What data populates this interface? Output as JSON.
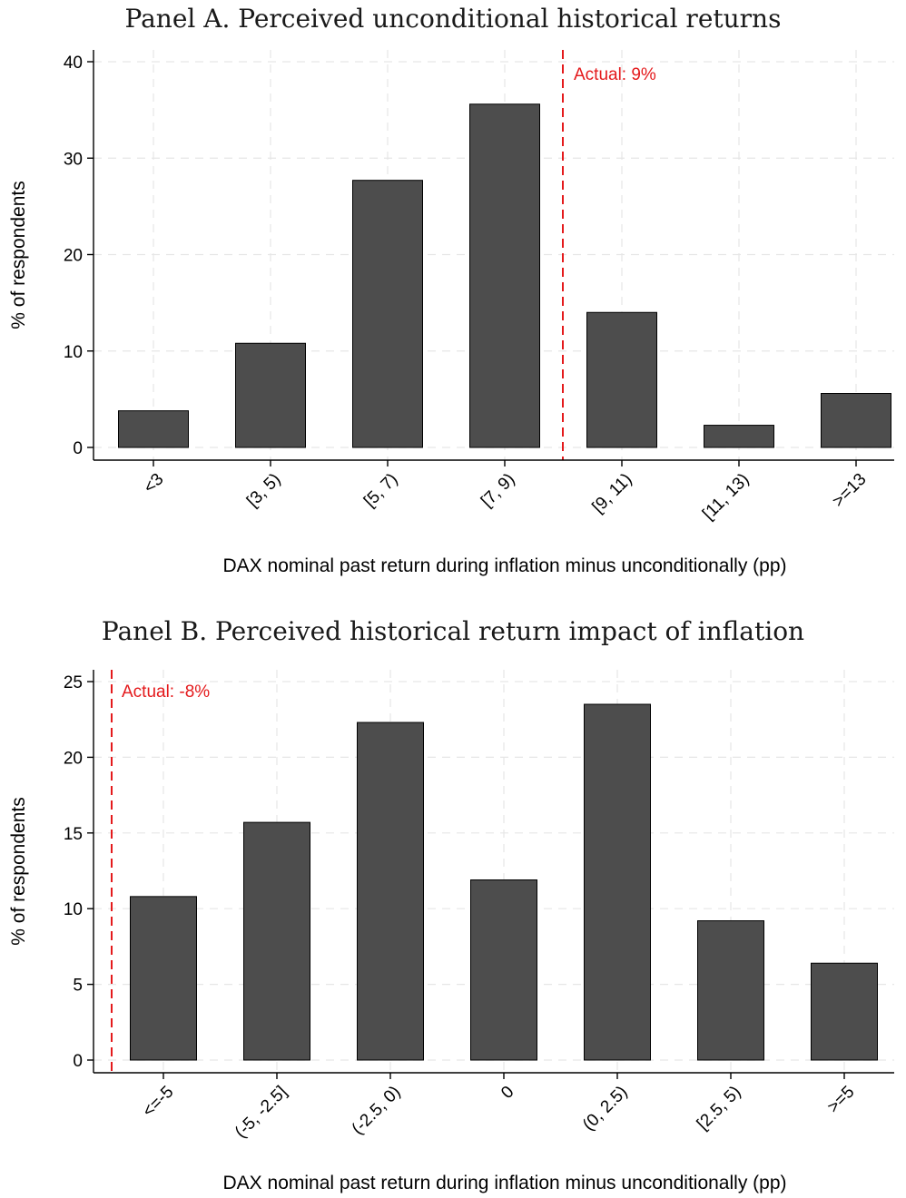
{
  "colors": {
    "bar": "#4d4d4d",
    "reference": "#e41a1c",
    "grid": "#e6e6e6"
  },
  "chart_data": [
    {
      "type": "bar",
      "title": "Panel A. Perceived unconditional historical returns",
      "xlabel": "DAX nominal past return during inflation minus unconditionally (pp)",
      "ylabel": "% of respondents",
      "categories": [
        "<3",
        "[3, 5)",
        "[5, 7)",
        "[7, 9)",
        "[9, 11)",
        "[11, 13)",
        ">=13"
      ],
      "values": [
        3.8,
        10.8,
        27.7,
        35.6,
        14.0,
        2.3,
        5.6
      ],
      "ylim": [
        0,
        40
      ],
      "yticks": [
        0,
        10,
        20,
        30,
        40
      ],
      "grid": true,
      "reference_line": {
        "position": "between [7, 9) and [9, 11)",
        "label": "Actual: 9%"
      }
    },
    {
      "type": "bar",
      "title": "Panel B. Perceived historical return impact of inflation",
      "xlabel": "DAX nominal past return during inflation minus unconditionally (pp)",
      "ylabel": "% of respondents",
      "categories": [
        "<=-5",
        "(-5, -2.5]",
        "(-2.5, 0)",
        "0",
        "(0, 2.5)",
        "[2.5, 5)",
        ">=5"
      ],
      "values": [
        10.8,
        15.7,
        22.3,
        11.9,
        23.5,
        9.2,
        6.4
      ],
      "ylim": [
        0,
        25
      ],
      "yticks": [
        0,
        5,
        10,
        15,
        20,
        25
      ],
      "grid": true,
      "reference_line": {
        "position": "left of <=-5",
        "label": "Actual: -8%"
      }
    }
  ]
}
